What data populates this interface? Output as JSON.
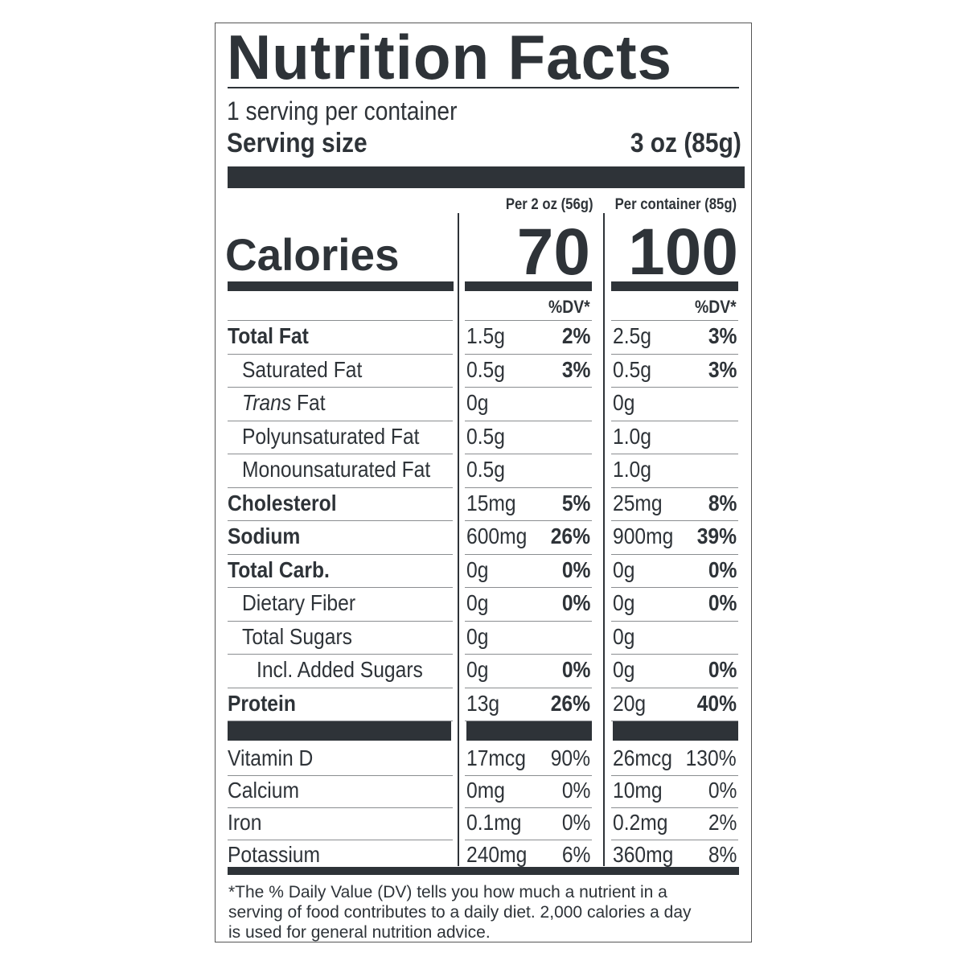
{
  "title": "Nutrition Facts",
  "servings": "1 serving per container",
  "serving_size": {
    "label": "Serving size",
    "value": "3 oz (85g)"
  },
  "columns": [
    "Per 2 oz (56g)",
    "Per container (85g)"
  ],
  "calories": {
    "label": "Calories",
    "values": [
      "70",
      "100"
    ]
  },
  "dv_header": "%DV*",
  "rows": [
    {
      "name": "Total Fat",
      "a1": "1.5g",
      "d1": "2%",
      "a2": "2.5g",
      "d2": "3%",
      "sub": [
        {
          "name": "Saturated Fat",
          "a1": "0.5g",
          "d1": "3%",
          "a2": "0.5g",
          "d2": "3%"
        },
        {
          "name_italic": "Trans",
          "name": "Fat",
          "a1": "0g",
          "a2": "0g"
        },
        {
          "name": "Polyunsaturated Fat",
          "a1": "0.5g",
          "a2": "1.0g"
        },
        {
          "name": "Monounsaturated Fat",
          "a1": "0.5g",
          "a2": "1.0g"
        }
      ]
    },
    {
      "name": "Cholesterol",
      "a1": "15mg",
      "d1": "5%",
      "a2": "25mg",
      "d2": "8%"
    },
    {
      "name": "Sodium",
      "a1": "600mg",
      "d1": "26%",
      "a2": "900mg",
      "d2": "39%"
    },
    {
      "name": "Total Carb.",
      "a1": "0g",
      "d1": "0%",
      "a2": "0g",
      "d2": "0%",
      "sub": [
        {
          "name": "Dietary Fiber",
          "a1": "0g",
          "d1": "0%",
          "a2": "0g",
          "d2": "0%"
        },
        {
          "name": "Total Sugars",
          "a1": "0g",
          "a2": "0g",
          "sub": [
            {
              "name": "Incl. Added Sugars",
              "a1": "0g",
              "d1": "0%",
              "a2": "0g",
              "d2": "0%"
            }
          ]
        }
      ]
    },
    {
      "name": "Protein",
      "a1": "13g",
      "d1": "26%",
      "a2": "20g",
      "d2": "40%"
    }
  ],
  "vitamins": [
    {
      "name": "Vitamin D",
      "a1": "17mcg",
      "d1": "90%",
      "a2": "26mcg",
      "d2": "130%"
    },
    {
      "name": "Calcium",
      "a1": "0mg",
      "d1": "0%",
      "a2": "10mg",
      "d2": "0%"
    },
    {
      "name": "Iron",
      "a1": "0.1mg",
      "d1": "0%",
      "a2": "0.2mg",
      "d2": "2%"
    },
    {
      "name": "Potassium",
      "a1": "240mg",
      "d1": "6%",
      "a2": "360mg",
      "d2": "8%"
    }
  ],
  "footnote": [
    "*The % Daily Value (DV) tells you how much a nutrient in a",
    "serving of food contributes to a daily diet. 2,000 calories a day",
    "is used for general nutrition advice."
  ]
}
